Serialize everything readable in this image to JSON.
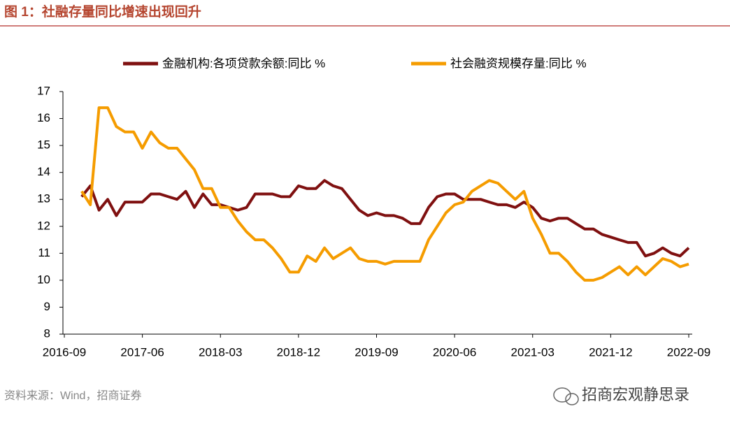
{
  "title": "图 1：社融存量同比增速出现回升",
  "source": "资料来源：Wind，招商证券",
  "watermark": "招商宏观静思录",
  "chart_data": {
    "type": "line",
    "categories": [
      "2016-09",
      null,
      null,
      null,
      null,
      null,
      null,
      null,
      null,
      "2017-06",
      null,
      null,
      null,
      null,
      null,
      null,
      null,
      null,
      "2018-03",
      null,
      null,
      null,
      null,
      null,
      null,
      null,
      null,
      "2018-12",
      null,
      null,
      null,
      null,
      null,
      null,
      null,
      null,
      "2019-09",
      null,
      null,
      null,
      null,
      null,
      null,
      null,
      null,
      "2020-06",
      null,
      null,
      null,
      null,
      null,
      null,
      null,
      null,
      "2021-03",
      null,
      null,
      null,
      null,
      null,
      null,
      null,
      null,
      "2021-12",
      null,
      null,
      null,
      null,
      null,
      null,
      null,
      null,
      "2022-09"
    ],
    "series": [
      {
        "name": "金融机构:各项贷款余额:同比 %",
        "color": "#7f1010",
        "values": [
          null,
          null,
          13.1,
          13.5,
          12.6,
          13.0,
          12.4,
          12.9,
          12.9,
          12.9,
          13.2,
          13.2,
          13.1,
          13.0,
          13.3,
          12.7,
          13.2,
          12.8,
          12.8,
          12.7,
          12.6,
          12.7,
          13.2,
          13.2,
          13.2,
          13.1,
          13.1,
          13.5,
          13.4,
          13.4,
          13.7,
          13.5,
          13.4,
          13.0,
          12.6,
          12.4,
          12.5,
          12.4,
          12.4,
          12.3,
          12.1,
          12.1,
          12.7,
          13.1,
          13.2,
          13.2,
          13.0,
          13.0,
          13.0,
          12.9,
          12.8,
          12.8,
          12.7,
          12.9,
          12.7,
          12.3,
          12.2,
          12.3,
          12.3,
          12.1,
          11.9,
          11.9,
          11.7,
          11.6,
          11.5,
          11.4,
          11.4,
          10.9,
          11.0,
          11.2,
          11.0,
          10.9,
          11.2
        ]
      },
      {
        "name": "社会融资规模存量:同比 %",
        "color": "#f59c00",
        "values": [
          null,
          null,
          13.3,
          12.8,
          16.4,
          16.4,
          15.7,
          15.5,
          15.5,
          14.9,
          15.5,
          15.1,
          14.9,
          14.9,
          14.5,
          14.1,
          13.4,
          13.4,
          12.7,
          12.7,
          12.2,
          11.8,
          11.5,
          11.5,
          11.2,
          10.8,
          10.3,
          10.3,
          10.9,
          10.7,
          11.2,
          10.8,
          11.0,
          11.2,
          10.8,
          10.7,
          10.7,
          10.6,
          10.7,
          10.7,
          10.7,
          10.7,
          11.5,
          12.0,
          12.5,
          12.8,
          12.9,
          13.3,
          13.5,
          13.7,
          13.6,
          13.3,
          13.0,
          13.3,
          12.3,
          11.7,
          11.0,
          11.0,
          10.7,
          10.3,
          10.0,
          10.0,
          10.1,
          10.3,
          10.5,
          10.2,
          10.5,
          10.2,
          10.5,
          10.8,
          10.7,
          10.5,
          10.6
        ]
      }
    ],
    "ylim": [
      8,
      17
    ],
    "yticks": [
      8,
      9,
      10,
      11,
      12,
      13,
      14,
      15,
      16,
      17
    ]
  }
}
